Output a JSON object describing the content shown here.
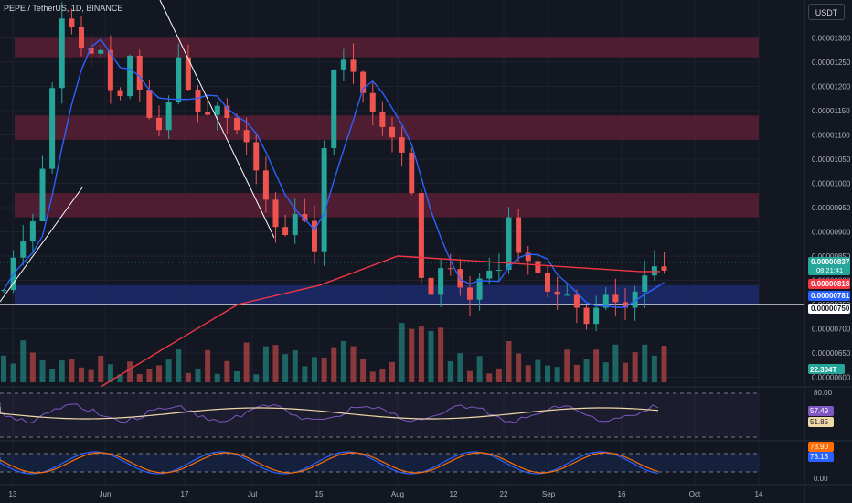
{
  "header": {
    "title": "PEPE / TetherUS, 1D, BINANCE",
    "currency_button": "USDT"
  },
  "colors": {
    "background": "#131722",
    "up": "#26a69a",
    "down": "#ef5350",
    "ma_short": "#2962ff",
    "ma_long": "#f23645",
    "zone_red": "#5b1f35",
    "zone_blue": "#1c2a6b",
    "rsi_line": "#7e57c2",
    "rsi_ma": "#f0d9a8",
    "stoch_k": "#2962ff",
    "stoch_d": "#ff6d00"
  },
  "price_axis": {
    "labels": [
      "0.00001300",
      "0.00001250",
      "0.00001200",
      "0.00001150",
      "0.00001100",
      "0.00001050",
      "0.00001000",
      "0.00000950",
      "0.00000900",
      "0.00000850",
      "0.00000800",
      "0.00000750",
      "0.00000700",
      "0.00000650",
      "0.00000600"
    ],
    "badges": [
      {
        "text": "0.00000837",
        "sub": "08:21:41",
        "bg": "#26a69a",
        "fg": "#ffffff",
        "value": 8.37e-06
      },
      {
        "text": "0.00000818",
        "bg": "#f23645",
        "fg": "#ffffff",
        "value": 8.18e-06
      },
      {
        "text": "0.00000781",
        "bg": "#2962ff",
        "fg": "#ffffff",
        "value": 7.81e-06
      },
      {
        "text": "0.00000750",
        "bg": "#ffffff",
        "fg": "#131722",
        "value": 7.5e-06
      }
    ],
    "volume_badge": "22.304T"
  },
  "time_axis": {
    "labels": [
      "13",
      "Jun",
      "17",
      "Jul",
      "15",
      "Aug",
      "12",
      "22",
      "Sep",
      "16",
      "Oct",
      "14"
    ]
  },
  "rsi_pane": {
    "level_top": "80.00",
    "badge_rsi": "57.49",
    "badge_ma": "51.85"
  },
  "stoch_pane": {
    "badge_k": "78.90",
    "badge_d": "73.13",
    "level_bottom": "0.00"
  },
  "chart_data": {
    "type": "candlestick",
    "symbol": "PEPE / TetherUS",
    "interval": "1D",
    "exchange": "BINANCE",
    "last_price": 8.37e-06,
    "ma_long_value": 8.18e-06,
    "ma_short_value": 7.81e-06,
    "horizontal_line": 7.5e-06,
    "zones": [
      {
        "low": 1.26e-05,
        "high": 1.3e-05,
        "color": "red"
      },
      {
        "low": 1.09e-05,
        "high": 1.14e-05,
        "color": "red"
      },
      {
        "low": 9.3e-06,
        "high": 9.8e-06,
        "color": "red"
      },
      {
        "low": 7.5e-06,
        "high": 7.9e-06,
        "color": "blue"
      }
    ],
    "price_range": [
      5.8e-06,
      1.34e-05
    ]
  }
}
